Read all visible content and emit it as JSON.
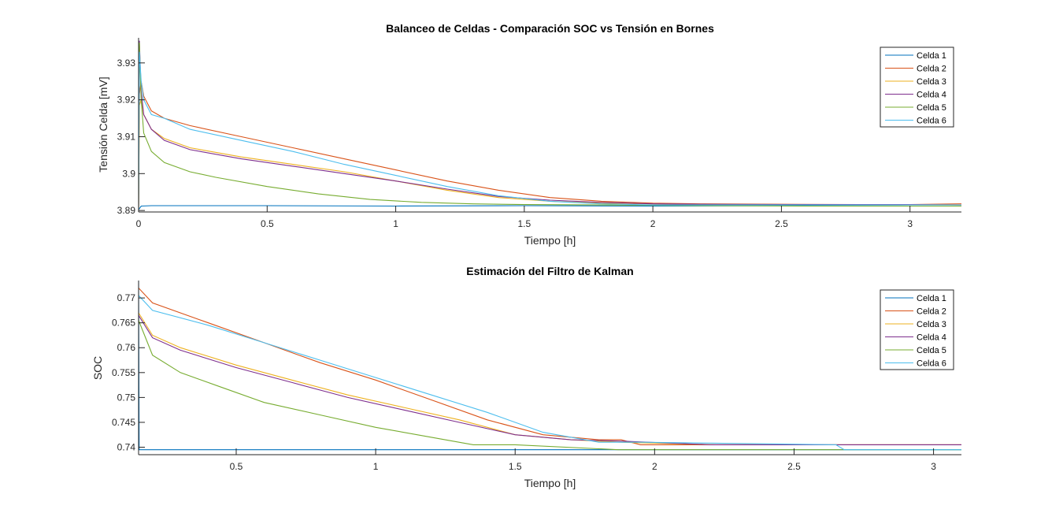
{
  "colors": [
    "#0072BD",
    "#D95319",
    "#EDB120",
    "#7E2F8E",
    "#77AC30",
    "#4DBEEE"
  ],
  "chart_data": [
    {
      "type": "line",
      "title": "Balanceo de Celdas - Comparación SOC vs Tensión en Bornes",
      "xlabel": "Tiempo [h]",
      "ylabel": "Tensión Celda [mV]",
      "xlim": [
        0,
        3.2
      ],
      "ylim": [
        3.8896,
        3.9368
      ],
      "xticks": [
        0,
        0.5,
        1,
        1.5,
        2,
        2.5,
        3
      ],
      "xtick_labels": [
        "0",
        "0.5",
        "1",
        "1.5",
        "2",
        "2.5",
        "3"
      ],
      "yticks": [
        3.89,
        3.9,
        3.91,
        3.92,
        3.93
      ],
      "ytick_labels": [
        "3.89",
        "3.9",
        "3.91",
        "3.92",
        "3.93"
      ],
      "grid": false,
      "legend": "top-right",
      "series": [
        {
          "name": "Celda 1",
          "x": [
            0,
            0.01,
            0.05,
            0.5,
            1,
            1.5,
            2,
            2.5,
            3,
            3.2
          ],
          "y": [
            3.8902,
            3.8912,
            3.8913,
            3.8913,
            3.8912,
            3.8913,
            3.8912,
            3.8913,
            3.8912,
            3.8912
          ]
        },
        {
          "name": "Celda 2",
          "x": [
            0,
            0.003,
            0.01,
            0.02,
            0.05,
            0.1,
            0.2,
            0.4,
            0.6,
            0.8,
            1,
            1.2,
            1.4,
            1.6,
            1.8,
            2,
            2.2,
            2.5,
            2.8,
            3,
            3.2
          ],
          "y": [
            3.8905,
            3.9215,
            3.925,
            3.921,
            3.917,
            3.915,
            3.913,
            3.91,
            3.907,
            3.904,
            3.901,
            3.898,
            3.8955,
            3.8935,
            3.8925,
            3.892,
            3.8918,
            3.8917,
            3.8916,
            3.8916,
            3.8918
          ]
        },
        {
          "name": "Celda 3",
          "x": [
            0,
            0.003,
            0.01,
            0.02,
            0.05,
            0.1,
            0.2,
            0.4,
            0.6,
            0.8,
            1,
            1.2,
            1.4,
            1.6,
            1.8,
            2,
            2.2,
            2.5,
            2.8,
            3,
            3.2
          ],
          "y": [
            3.8904,
            3.9185,
            3.92,
            3.916,
            3.912,
            3.9095,
            3.907,
            3.9045,
            3.9025,
            3.9005,
            3.898,
            3.8955,
            3.8935,
            3.8925,
            3.892,
            3.8918,
            3.8917,
            3.8916,
            3.8916,
            3.8916,
            3.8915
          ]
        },
        {
          "name": "Celda 4",
          "x": [
            0,
            0.003,
            0.01,
            0.02,
            0.05,
            0.1,
            0.2,
            0.4,
            0.6,
            0.8,
            1,
            1.2,
            1.4,
            1.6,
            1.8,
            2,
            2.2,
            2.5,
            2.8,
            3,
            3.2
          ],
          "y": [
            3.8904,
            3.936,
            3.9225,
            3.916,
            3.912,
            3.909,
            3.9065,
            3.904,
            3.902,
            3.9,
            3.898,
            3.8958,
            3.8938,
            3.8928,
            3.8922,
            3.8918,
            3.8917,
            3.8916,
            3.8916,
            3.8916,
            3.8915
          ]
        },
        {
          "name": "Celda 5",
          "x": [
            0,
            0.003,
            0.01,
            0.02,
            0.05,
            0.1,
            0.2,
            0.3,
            0.5,
            0.7,
            0.9,
            1.1,
            1.3,
            1.5,
            1.8,
            2.2,
            2.6,
            3,
            3.2
          ],
          "y": [
            3.8904,
            3.9355,
            3.92,
            3.911,
            3.906,
            3.903,
            3.9005,
            3.899,
            3.8965,
            3.8945,
            3.893,
            3.8922,
            3.8918,
            3.8916,
            3.8915,
            3.8913,
            3.8912,
            3.8912,
            3.8912
          ]
        },
        {
          "name": "Celda 6",
          "x": [
            0,
            0.003,
            0.01,
            0.02,
            0.05,
            0.1,
            0.2,
            0.4,
            0.6,
            0.8,
            1,
            1.2,
            1.4,
            1.6,
            1.8,
            2,
            2.2,
            2.5,
            2.8,
            3,
            3.2
          ],
          "y": [
            3.8904,
            3.933,
            3.925,
            3.92,
            3.916,
            3.915,
            3.912,
            3.909,
            3.906,
            3.9025,
            3.8995,
            3.8965,
            3.894,
            3.8925,
            3.8918,
            3.8915,
            3.8915,
            3.8915,
            3.8915,
            3.8915,
            3.8915
          ]
        }
      ]
    },
    {
      "type": "line",
      "title": "Estimación del Filtro de Kalman",
      "xlabel": "Tiempo [h]",
      "ylabel": "SOC",
      "xlim": [
        0.15,
        3.1
      ],
      "ylim": [
        0.7385,
        0.7735
      ],
      "xticks": [
        0.5,
        1,
        1.5,
        2,
        2.5,
        3
      ],
      "xtick_labels": [
        "0.5",
        "1",
        "1.5",
        "2",
        "2.5",
        "3"
      ],
      "yticks": [
        0.74,
        0.745,
        0.75,
        0.755,
        0.76,
        0.765,
        0.77
      ],
      "ytick_labels": [
        "0.74",
        "0.745",
        "0.75",
        "0.755",
        "0.76",
        "0.765",
        "0.77"
      ],
      "grid": false,
      "legend": "top-right",
      "series": [
        {
          "name": "Celda 1",
          "x": [
            0.15,
            0.152,
            0.155,
            3.1
          ],
          "y": [
            0.7735,
            0.7395,
            0.7395,
            0.7395
          ]
        },
        {
          "name": "Celda 2",
          "x": [
            0.15,
            0.2,
            0.4,
            0.6,
            0.8,
            1,
            1.2,
            1.4,
            1.6,
            1.8,
            1.88,
            1.95,
            2.2,
            3.1
          ],
          "y": [
            0.772,
            0.769,
            0.765,
            0.761,
            0.757,
            0.7535,
            0.7495,
            0.7455,
            0.7425,
            0.7415,
            0.7415,
            0.7405,
            0.7405,
            0.7405
          ]
        },
        {
          "name": "Celda 3",
          "x": [
            0.15,
            0.2,
            0.3,
            0.5,
            0.7,
            0.9,
            1.1,
            1.3,
            1.5,
            1.7,
            1.88,
            2.22,
            3.1
          ],
          "y": [
            0.767,
            0.7625,
            0.76,
            0.7565,
            0.7535,
            0.7505,
            0.748,
            0.7455,
            0.7425,
            0.7415,
            0.741,
            0.7405,
            0.7405
          ]
        },
        {
          "name": "Celda 4",
          "x": [
            0.15,
            0.2,
            0.3,
            0.5,
            0.7,
            0.9,
            1.1,
            1.3,
            1.5,
            1.7,
            1.9,
            2.2,
            3.1
          ],
          "y": [
            0.7665,
            0.762,
            0.7595,
            0.756,
            0.753,
            0.75,
            0.7475,
            0.745,
            0.7425,
            0.7415,
            0.7412,
            0.7405,
            0.7405
          ]
        },
        {
          "name": "Celda 5",
          "x": [
            0.15,
            0.2,
            0.3,
            0.45,
            0.6,
            0.8,
            1,
            1.2,
            1.35,
            1.5,
            1.87,
            2.05,
            3.1
          ],
          "y": [
            0.7655,
            0.7585,
            0.755,
            0.752,
            0.749,
            0.7465,
            0.744,
            0.742,
            0.7405,
            0.7405,
            0.7395,
            0.7395,
            0.7395
          ]
        },
        {
          "name": "Celda 6",
          "x": [
            0.15,
            0.2,
            0.4,
            0.6,
            0.8,
            1,
            1.2,
            1.4,
            1.6,
            1.8,
            1.95,
            2.65,
            2.68,
            3.1
          ],
          "y": [
            0.7705,
            0.7675,
            0.7645,
            0.761,
            0.7575,
            0.754,
            0.7505,
            0.747,
            0.743,
            0.741,
            0.741,
            0.7405,
            0.7395,
            0.7395
          ]
        }
      ]
    }
  ]
}
